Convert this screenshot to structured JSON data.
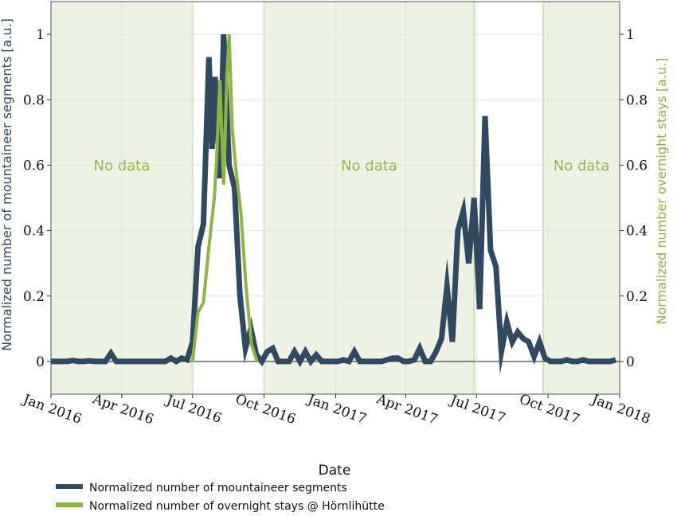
{
  "chart_data": {
    "type": "line",
    "xlabel": "Date",
    "ylabel_left": "Normalized number of mountaineer segments [a.u.]",
    "ylabel_right": "Normalized number overnight stays [a.u.]",
    "xlim": [
      "2016-01-01",
      "2018-01-01"
    ],
    "ylim": [
      -0.1,
      1.1
    ],
    "x_ticks": [
      {
        "date": "2016-01-01",
        "label": "Jan 2016"
      },
      {
        "date": "2016-04-01",
        "label": "Apr 2016"
      },
      {
        "date": "2016-07-01",
        "label": "Jul 2016"
      },
      {
        "date": "2016-10-01",
        "label": "Oct 2016"
      },
      {
        "date": "2017-01-01",
        "label": "Jan 2017"
      },
      {
        "date": "2017-04-01",
        "label": "Apr 2017"
      },
      {
        "date": "2017-07-01",
        "label": "Jul 2017"
      },
      {
        "date": "2017-10-01",
        "label": "Oct 2017"
      },
      {
        "date": "2018-01-01",
        "label": "Jan 2018"
      }
    ],
    "y_ticks": [
      {
        "value": 0,
        "label": "0"
      },
      {
        "value": 0.2,
        "label": "0.2"
      },
      {
        "value": 0.4,
        "label": "0.4"
      },
      {
        "value": 0.6,
        "label": "0.6"
      },
      {
        "value": 0.8,
        "label": "0.8"
      },
      {
        "value": 1,
        "label": "1"
      }
    ],
    "grid": true,
    "legend_position": "bottom-left",
    "no_data_regions": [
      {
        "start": "2016-01-01",
        "end": "2016-07-01",
        "label": "No data"
      },
      {
        "start": "2016-10-01",
        "end": "2017-06-28",
        "label": "No data"
      },
      {
        "start": "2017-09-25",
        "end": "2018-01-01",
        "label": "No data"
      }
    ],
    "series": [
      {
        "name": "Normalized number of mountaineer segments",
        "color": "#2f4a60",
        "points": [
          [
            "2016-01-01",
            0.0
          ],
          [
            "2016-01-08",
            0.0
          ],
          [
            "2016-01-15",
            0.0
          ],
          [
            "2016-01-22",
            0.0
          ],
          [
            "2016-01-29",
            0.003
          ],
          [
            "2016-02-05",
            0.0
          ],
          [
            "2016-02-12",
            0.0
          ],
          [
            "2016-02-19",
            0.002
          ],
          [
            "2016-02-26",
            0.0
          ],
          [
            "2016-03-04",
            0.0
          ],
          [
            "2016-03-11",
            0.0
          ],
          [
            "2016-03-18",
            0.025
          ],
          [
            "2016-03-25",
            0.0
          ],
          [
            "2016-04-01",
            0.0
          ],
          [
            "2016-04-08",
            0.0
          ],
          [
            "2016-04-15",
            0.0
          ],
          [
            "2016-04-22",
            0.0
          ],
          [
            "2016-04-29",
            0.0
          ],
          [
            "2016-05-06",
            0.0
          ],
          [
            "2016-05-13",
            0.0
          ],
          [
            "2016-05-20",
            0.0
          ],
          [
            "2016-05-27",
            0.0
          ],
          [
            "2016-06-03",
            0.01
          ],
          [
            "2016-06-10",
            0.0
          ],
          [
            "2016-06-17",
            0.01
          ],
          [
            "2016-06-24",
            0.005
          ],
          [
            "2016-07-01",
            0.06
          ],
          [
            "2016-07-08",
            0.35
          ],
          [
            "2016-07-15",
            0.42
          ],
          [
            "2016-07-22",
            0.93
          ],
          [
            "2016-07-26",
            0.65
          ],
          [
            "2016-07-30",
            0.87
          ],
          [
            "2016-08-05",
            0.56
          ],
          [
            "2016-08-10",
            1.0
          ],
          [
            "2016-08-17",
            0.6
          ],
          [
            "2016-08-24",
            0.53
          ],
          [
            "2016-08-31",
            0.2
          ],
          [
            "2016-09-07",
            0.04
          ],
          [
            "2016-09-14",
            0.1
          ],
          [
            "2016-09-21",
            0.02
          ],
          [
            "2016-09-28",
            0.0
          ],
          [
            "2016-10-05",
            0.03
          ],
          [
            "2016-10-12",
            0.04
          ],
          [
            "2016-10-19",
            0.0
          ],
          [
            "2016-10-26",
            0.0
          ],
          [
            "2016-11-02",
            0.0
          ],
          [
            "2016-11-09",
            0.03
          ],
          [
            "2016-11-16",
            0.0
          ],
          [
            "2016-11-23",
            0.03
          ],
          [
            "2016-11-30",
            0.0
          ],
          [
            "2016-12-07",
            0.02
          ],
          [
            "2016-12-14",
            0.0
          ],
          [
            "2016-12-21",
            0.0
          ],
          [
            "2016-12-28",
            0.0
          ],
          [
            "2017-01-04",
            0.0
          ],
          [
            "2017-01-11",
            0.005
          ],
          [
            "2017-01-18",
            0.0
          ],
          [
            "2017-01-25",
            0.03
          ],
          [
            "2017-02-01",
            0.0
          ],
          [
            "2017-02-08",
            0.0
          ],
          [
            "2017-02-15",
            0.0
          ],
          [
            "2017-02-22",
            0.0
          ],
          [
            "2017-03-01",
            0.0
          ],
          [
            "2017-03-08",
            0.005
          ],
          [
            "2017-03-15",
            0.01
          ],
          [
            "2017-03-22",
            0.01
          ],
          [
            "2017-03-29",
            0.0
          ],
          [
            "2017-04-05",
            0.0
          ],
          [
            "2017-04-12",
            0.005
          ],
          [
            "2017-04-19",
            0.04
          ],
          [
            "2017-04-26",
            0.0
          ],
          [
            "2017-05-03",
            0.0
          ],
          [
            "2017-05-10",
            0.03
          ],
          [
            "2017-05-17",
            0.07
          ],
          [
            "2017-05-24",
            0.23
          ],
          [
            "2017-05-31",
            0.06
          ],
          [
            "2017-06-07",
            0.4
          ],
          [
            "2017-06-14",
            0.46
          ],
          [
            "2017-06-21",
            0.3
          ],
          [
            "2017-06-28",
            0.5
          ],
          [
            "2017-07-05",
            0.16
          ],
          [
            "2017-07-12",
            0.75
          ],
          [
            "2017-07-19",
            0.34
          ],
          [
            "2017-07-26",
            0.29
          ],
          [
            "2017-08-02",
            0.03
          ],
          [
            "2017-08-09",
            0.12
          ],
          [
            "2017-08-16",
            0.06
          ],
          [
            "2017-08-23",
            0.09
          ],
          [
            "2017-08-30",
            0.07
          ],
          [
            "2017-09-06",
            0.06
          ],
          [
            "2017-09-13",
            0.015
          ],
          [
            "2017-09-20",
            0.06
          ],
          [
            "2017-09-27",
            0.01
          ],
          [
            "2017-10-04",
            0.0
          ],
          [
            "2017-10-11",
            0.0
          ],
          [
            "2017-10-18",
            0.0
          ],
          [
            "2017-10-25",
            0.005
          ],
          [
            "2017-11-01",
            0.0
          ],
          [
            "2017-11-08",
            0.0
          ],
          [
            "2017-11-15",
            0.005
          ],
          [
            "2017-11-22",
            0.0
          ],
          [
            "2017-11-29",
            0.0
          ],
          [
            "2017-12-06",
            0.0
          ],
          [
            "2017-12-13",
            0.0
          ],
          [
            "2017-12-20",
            0.0
          ],
          [
            "2017-12-27",
            0.005
          ]
        ]
      },
      {
        "name": "Normalized number of overnight stays @ Hörnlihütte",
        "color": "#8cb543",
        "points": [
          [
            "2016-07-01",
            0.0
          ],
          [
            "2016-07-08",
            0.15
          ],
          [
            "2016-07-15",
            0.18
          ],
          [
            "2016-07-22",
            0.35
          ],
          [
            "2016-07-29",
            0.5
          ],
          [
            "2016-08-01",
            0.62
          ],
          [
            "2016-08-05",
            0.86
          ],
          [
            "2016-08-10",
            0.54
          ],
          [
            "2016-08-14",
            0.86
          ],
          [
            "2016-08-17",
            1.0
          ],
          [
            "2016-08-21",
            0.71
          ],
          [
            "2016-08-26",
            0.58
          ],
          [
            "2016-09-01",
            0.46
          ],
          [
            "2016-09-08",
            0.22
          ],
          [
            "2016-09-15",
            0.05
          ],
          [
            "2016-09-22",
            0.0
          ]
        ]
      }
    ]
  },
  "legend": {
    "items": [
      {
        "label": "Normalized number of mountaineer segments",
        "color": "#2f4a60"
      },
      {
        "label": "Normalized number of overnight stays @ Hörnlihütte",
        "color": "#8cb543"
      }
    ]
  },
  "colors": {
    "no_data_fill": "#edf2e4",
    "no_data_line": "#cfe0b5",
    "no_data_text": "#8cb543",
    "left_axis_label": "#2f4a60",
    "right_axis_label": "#8cb543"
  }
}
